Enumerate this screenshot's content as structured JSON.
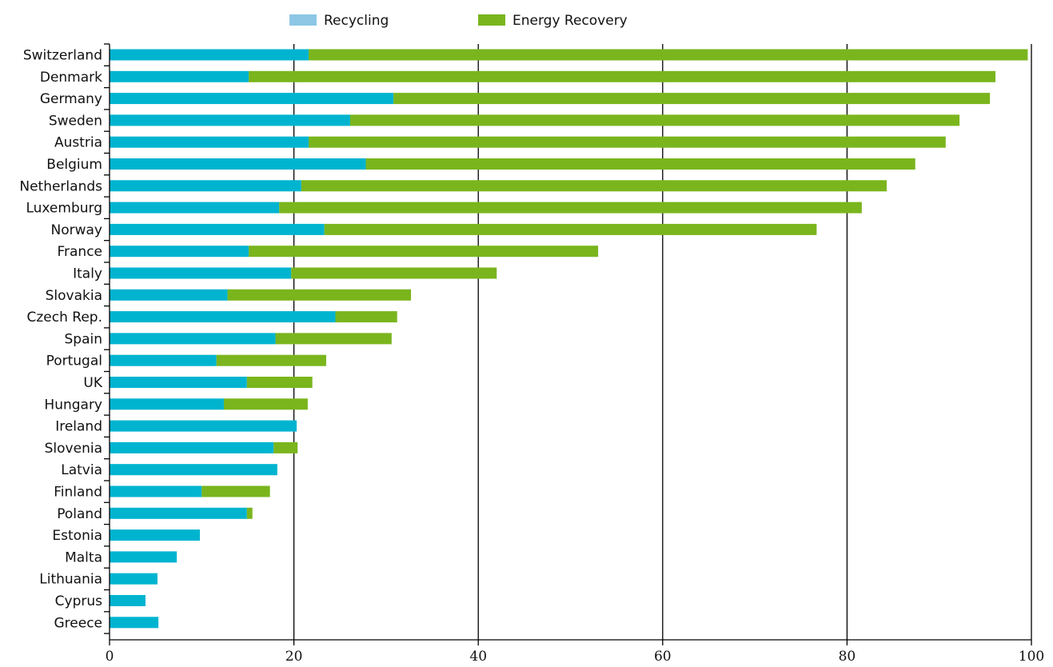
{
  "chart_data": {
    "type": "bar",
    "orientation": "horizontal",
    "stacked": true,
    "categories": [
      "Switzerland",
      "Denmark",
      "Germany",
      "Sweden",
      "Austria",
      "Belgium",
      "Netherlands",
      "Luxemburg",
      "Norway",
      "France",
      "Italy",
      "Slovakia",
      "Czech Rep.",
      "Spain",
      "Portugal",
      "UK",
      "Hungary",
      "Ireland",
      "Slovenia",
      "Latvia",
      "Finland",
      "Poland",
      "Estonia",
      "Malta",
      "Lithuania",
      "Cyprus",
      "Greece"
    ],
    "series": [
      {
        "name": "Recycling",
        "color": "#00b4d0",
        "legend_color": "#8dc7e6",
        "values": [
          21.6,
          15.1,
          30.8,
          26.1,
          21.6,
          27.8,
          20.8,
          18.4,
          23.3,
          15.1,
          19.7,
          12.8,
          24.5,
          18.0,
          11.6,
          14.9,
          12.4,
          20.3,
          17.8,
          18.2,
          10.0,
          14.9,
          9.8,
          7.3,
          5.2,
          3.9,
          5.3
        ]
      },
      {
        "name": "Energy Recovery",
        "color": "#7ab51d",
        "legend_color": "#7ab51d",
        "values": [
          78.0,
          81.0,
          64.7,
          66.1,
          69.1,
          59.6,
          63.5,
          63.2,
          53.4,
          37.9,
          22.3,
          19.9,
          6.7,
          12.6,
          11.9,
          7.1,
          9.1,
          0,
          2.6,
          0,
          7.4,
          0.6,
          0,
          0,
          0,
          0,
          0
        ]
      }
    ],
    "xlim": [
      0,
      100
    ],
    "xticks": [
      0,
      20,
      40,
      60,
      80,
      100
    ],
    "grid": "vertical",
    "legend_position": "top-center",
    "title": "",
    "xlabel": "",
    "ylabel": ""
  }
}
